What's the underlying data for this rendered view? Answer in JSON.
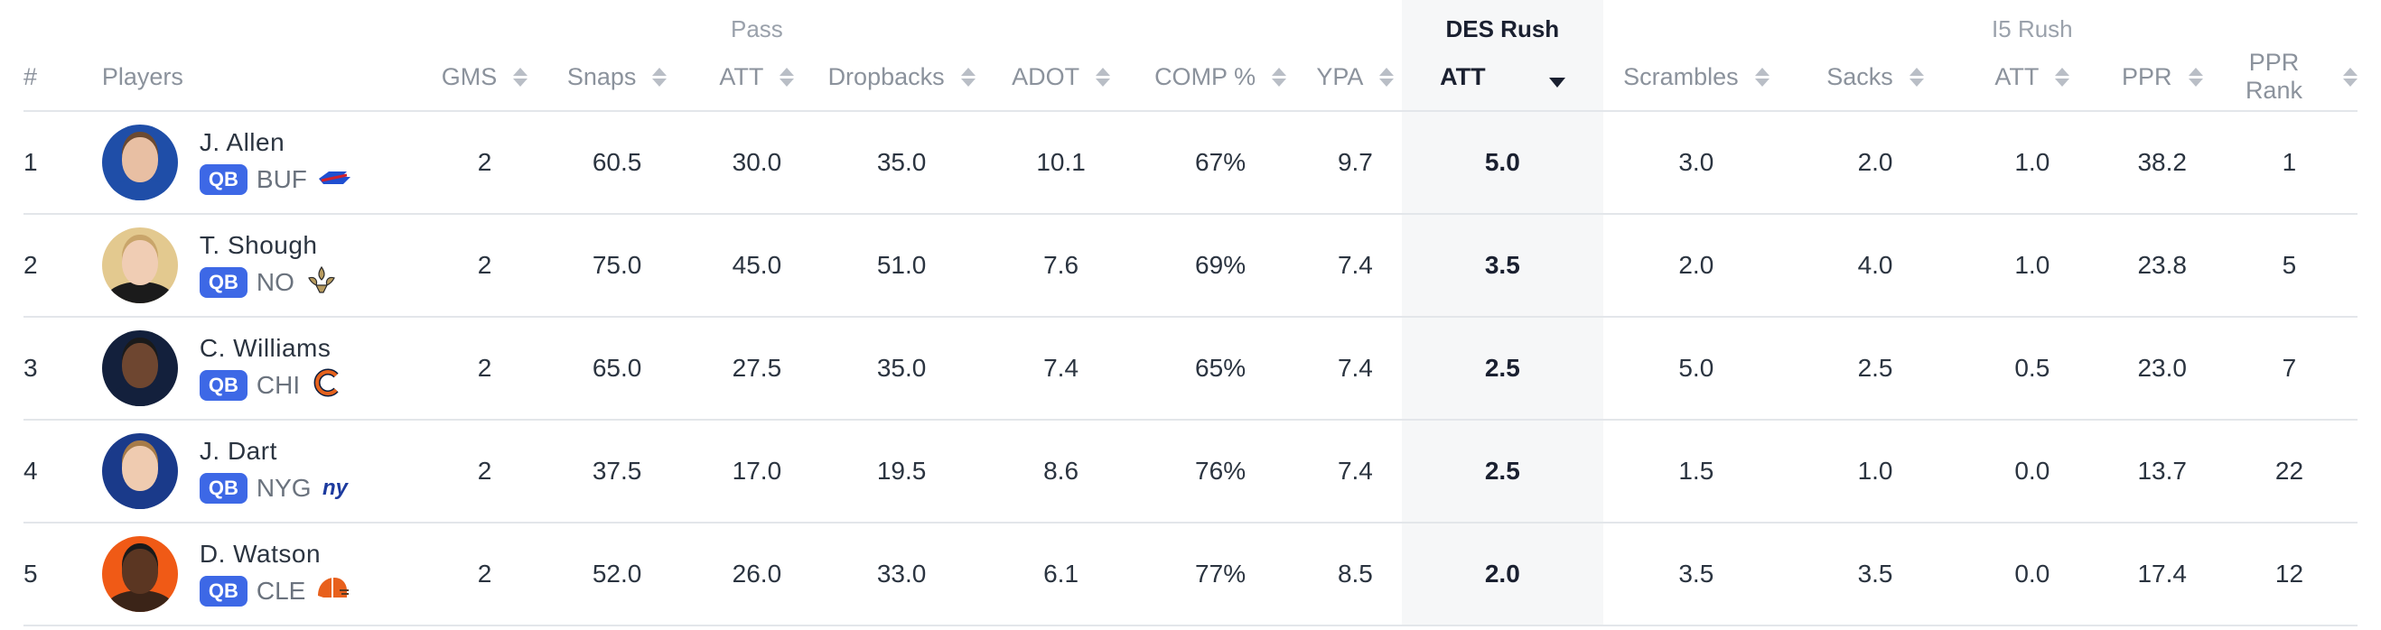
{
  "header": {
    "groups": {
      "pass": "Pass",
      "des_rush": "DES Rush",
      "i5_rush": "I5 Rush"
    },
    "columns": {
      "rank": "#",
      "players": "Players",
      "gms": "GMS",
      "snaps": "Snaps",
      "pass_att": "ATT",
      "dropbacks": "Dropbacks",
      "adot": "ADOT",
      "comp_pct": "COMP %",
      "ypa": "YPA",
      "des_att": "ATT",
      "scrambles": "Scrambles",
      "sacks": "Sacks",
      "i5_att": "ATT",
      "ppr": "PPR",
      "ppr_rank": "PPR Rank"
    },
    "sorted_column": "des_att",
    "sort_direction": "descending"
  },
  "colors": {
    "position_badge": "#3d68e6",
    "highlight_column": "#f6f7f8"
  },
  "rows": [
    {
      "rank": "1",
      "name": "J. Allen",
      "pos": "QB",
      "team": "BUF",
      "team_logo": "bills-logo",
      "gms": "2",
      "snaps": "60.5",
      "pass_att": "30.0",
      "dropbacks": "35.0",
      "adot": "10.1",
      "comp_pct": "67%",
      "ypa": "9.7",
      "des_att": "5.0",
      "scrambles": "3.0",
      "sacks": "2.0",
      "i5_att": "1.0",
      "ppr": "38.2",
      "ppr_rank": "1"
    },
    {
      "rank": "2",
      "name": "T. Shough",
      "pos": "QB",
      "team": "NO",
      "team_logo": "saints-logo",
      "gms": "2",
      "snaps": "75.0",
      "pass_att": "45.0",
      "dropbacks": "51.0",
      "adot": "7.6",
      "comp_pct": "69%",
      "ypa": "7.4",
      "des_att": "3.5",
      "scrambles": "2.0",
      "sacks": "4.0",
      "i5_att": "1.0",
      "ppr": "23.8",
      "ppr_rank": "5"
    },
    {
      "rank": "3",
      "name": "C. Williams",
      "pos": "QB",
      "team": "CHI",
      "team_logo": "bears-logo",
      "gms": "2",
      "snaps": "65.0",
      "pass_att": "27.5",
      "dropbacks": "35.0",
      "adot": "7.4",
      "comp_pct": "65%",
      "ypa": "7.4",
      "des_att": "2.5",
      "scrambles": "5.0",
      "sacks": "2.5",
      "i5_att": "0.5",
      "ppr": "23.0",
      "ppr_rank": "7"
    },
    {
      "rank": "4",
      "name": "J. Dart",
      "pos": "QB",
      "team": "NYG",
      "team_logo": "giants-logo",
      "gms": "2",
      "snaps": "37.5",
      "pass_att": "17.0",
      "dropbacks": "19.5",
      "adot": "8.6",
      "comp_pct": "76%",
      "ypa": "7.4",
      "des_att": "2.5",
      "scrambles": "1.5",
      "sacks": "1.0",
      "i5_att": "0.0",
      "ppr": "13.7",
      "ppr_rank": "22"
    },
    {
      "rank": "5",
      "name": "D. Watson",
      "pos": "QB",
      "team": "CLE",
      "team_logo": "browns-logo",
      "gms": "2",
      "snaps": "52.0",
      "pass_att": "26.0",
      "dropbacks": "33.0",
      "adot": "6.1",
      "comp_pct": "77%",
      "ypa": "8.5",
      "des_att": "2.0",
      "scrambles": "3.5",
      "sacks": "3.5",
      "i5_att": "0.0",
      "ppr": "17.4",
      "ppr_rank": "12"
    }
  ]
}
